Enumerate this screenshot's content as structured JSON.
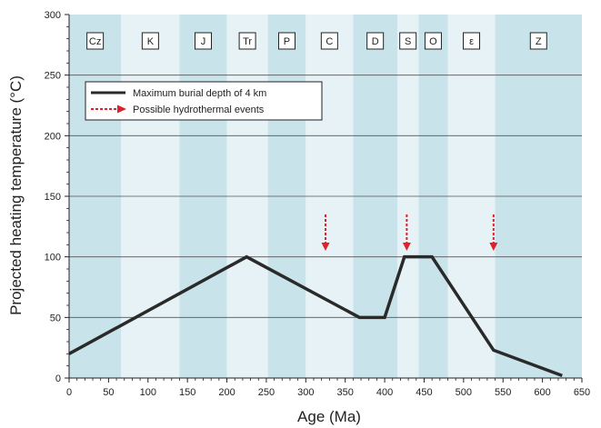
{
  "chart_data": {
    "type": "line",
    "xlabel": "Age (Ma)",
    "ylabel": "Projected heating temperature (°C)",
    "xlim": [
      0,
      650
    ],
    "ylim": [
      0,
      300
    ],
    "xticks": [
      0,
      50,
      100,
      150,
      200,
      250,
      300,
      350,
      400,
      450,
      500,
      550,
      600,
      650
    ],
    "yticks": [
      0,
      50,
      100,
      150,
      200,
      250,
      300
    ],
    "grid": "horizontal",
    "legend_position": "top-left",
    "colors": {
      "band_dark": "#c8e3ea",
      "band_light": "#e6f2f5",
      "series": "#2a2a2a",
      "events": "#e0202a"
    },
    "periods": [
      {
        "label": "Cz",
        "start": 0,
        "end": 66,
        "shade": "dark"
      },
      {
        "label": "K",
        "start": 66,
        "end": 140,
        "shade": "light"
      },
      {
        "label": "J",
        "start": 140,
        "end": 200,
        "shade": "dark"
      },
      {
        "label": "Tr",
        "start": 200,
        "end": 252,
        "shade": "light"
      },
      {
        "label": "P",
        "start": 252,
        "end": 300,
        "shade": "dark"
      },
      {
        "label": "C",
        "start": 300,
        "end": 360,
        "shade": "light"
      },
      {
        "label": "D",
        "start": 360,
        "end": 416,
        "shade": "dark"
      },
      {
        "label": "S",
        "start": 416,
        "end": 443,
        "shade": "light"
      },
      {
        "label": "O",
        "start": 443,
        "end": 480,
        "shade": "dark"
      },
      {
        "label": "ε",
        "start": 480,
        "end": 540,
        "shade": "light"
      },
      {
        "label": "Z",
        "start": 540,
        "end": 650,
        "shade": "dark"
      }
    ],
    "series": [
      {
        "name": "Maximum burial depth of 4 km",
        "x": [
          0,
          225,
          368,
          400,
          425,
          460,
          538,
          625
        ],
        "y": [
          20,
          100,
          50,
          50,
          100,
          100,
          23,
          2
        ]
      }
    ],
    "events": {
      "name": "Possible hydrothermal events",
      "x": [
        325,
        428,
        538
      ],
      "y_from": 135,
      "y_to": 105
    }
  }
}
